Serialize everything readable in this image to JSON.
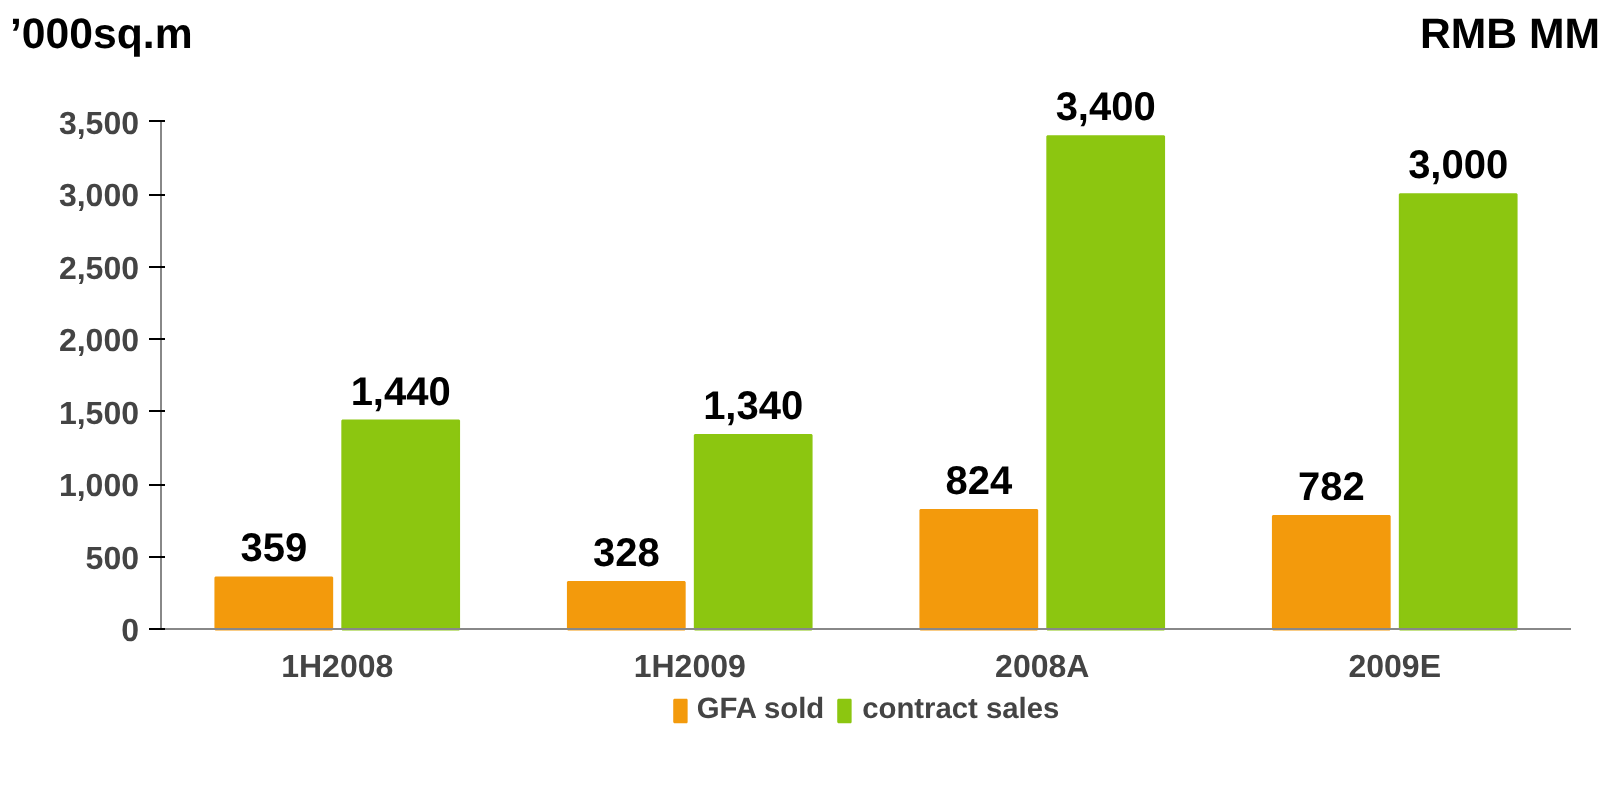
{
  "chart_data": {
    "type": "bar",
    "ylabel": "’000sq.m",
    "y2label": "RMB MM",
    "categories": [
      "1H2008",
      "1H2009",
      "2008A",
      "2009E"
    ],
    "series": [
      {
        "name": "GFA sold",
        "color": "#f39a0c",
        "values": [
          359,
          328,
          824,
          782
        ],
        "value_labels": [
          "359",
          "328",
          "824",
          "782"
        ]
      },
      {
        "name": "contract sales",
        "color": "#8cc610",
        "values": [
          1440,
          1340,
          3400,
          3000
        ],
        "value_labels": [
          "1,440",
          "1,340",
          "3,400",
          "3,000"
        ]
      }
    ],
    "ylim": [
      0,
      3500
    ],
    "yticks": [
      {
        "value": 0,
        "label": "0"
      },
      {
        "value": 500,
        "label": "500"
      },
      {
        "value": 1000,
        "label": "1,000"
      },
      {
        "value": 1500,
        "label": "1,500"
      },
      {
        "value": 2000,
        "label": "2,000"
      },
      {
        "value": 2500,
        "label": "2,500"
      },
      {
        "value": 3000,
        "label": "3,000"
      },
      {
        "value": 3500,
        "label": "3,500"
      }
    ],
    "grid": false,
    "legend": "bottom"
  }
}
